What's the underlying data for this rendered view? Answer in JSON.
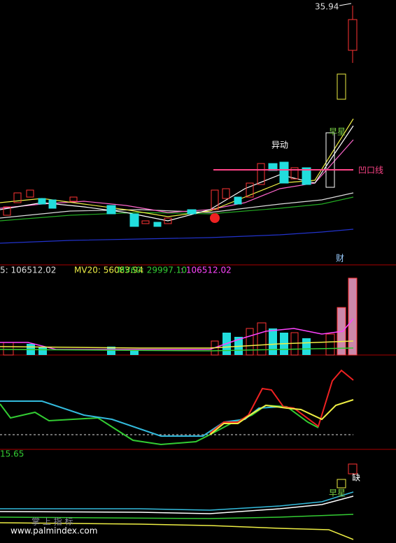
{
  "main": {
    "price_label": "35.94",
    "annotations": [
      "异动",
      "早星",
      "凹口线",
      "财"
    ]
  },
  "volume": {
    "legend": [
      "5: 106512.02",
      "MV20: 56083.94",
      "MV60: 29997.10",
      ": 106512.02"
    ]
  },
  "lower": {
    "price_label": "15.65",
    "annotations": [
      "缺",
      "早星"
    ],
    "faint_label": "掌 上 指 标"
  },
  "watermark": "www.palmindex.com"
}
